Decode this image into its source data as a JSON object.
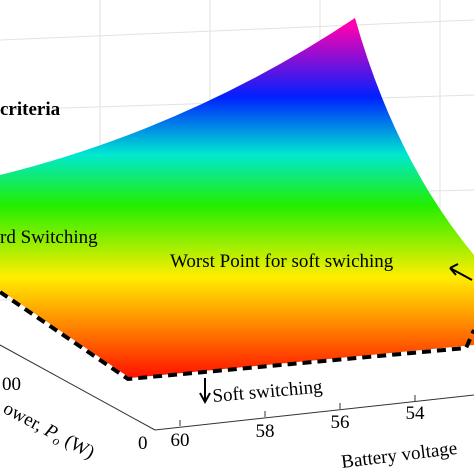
{
  "annotations": {
    "criteria": "criteria",
    "hard": "rd Switching",
    "worst": "Worst Point for soft swiching",
    "soft": "Soft switching"
  },
  "axes": {
    "voltage": {
      "label": "Battery voltage",
      "ticks": [
        60,
        58,
        56,
        54
      ]
    },
    "power": {
      "label": "ower, ",
      "symbol": "P",
      "subscript": "o",
      "unit": " (W)",
      "ticks": [
        "00",
        "0"
      ]
    }
  }
}
